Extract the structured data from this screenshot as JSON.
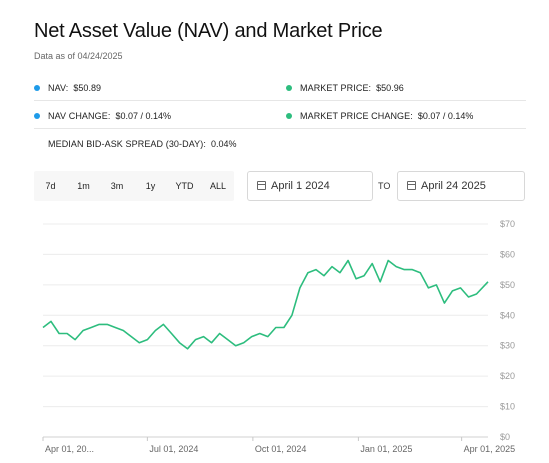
{
  "title": "Net Asset Value (NAV) and Market Price",
  "as_of": "Data as of 04/24/2025",
  "stats": {
    "nav": {
      "label": "NAV:",
      "value": "$50.89",
      "color": "#1e9be9"
    },
    "market_price": {
      "label": "MARKET PRICE:",
      "value": "$50.96",
      "color": "#2dbd7e"
    },
    "nav_change": {
      "label": "NAV CHANGE:",
      "value": "$0.07 / 0.14%",
      "color": "#1e9be9"
    },
    "market_price_change": {
      "label": "MARKET PRICE CHANGE:",
      "value": "$0.07 / 0.14%",
      "color": "#2dbd7e"
    },
    "spread": {
      "label": "MEDIAN BID-ASK SPREAD (30-DAY):",
      "value": "0.04%"
    }
  },
  "range_buttons": [
    "7d",
    "1m",
    "3m",
    "1y",
    "YTD",
    "ALL"
  ],
  "date_from": "April 1 2024",
  "date_to_label": "TO",
  "date_to": "April 24 2025",
  "chart_data": {
    "type": "line",
    "x_tick_labels": [
      "Apr 01, 20...",
      "Jul 01, 2024",
      "Oct 01, 2024",
      "Jan 01, 2025",
      "Apr 01, 2025"
    ],
    "x_ticks": [
      "2024-04-01",
      "2024-07-01",
      "2024-10-01",
      "2025-01-01",
      "2025-04-01"
    ],
    "y_tick_labels": [
      "$0",
      "$10",
      "$20",
      "$30",
      "$40",
      "$50",
      "$60",
      "$70"
    ],
    "ylim": [
      0,
      70
    ],
    "xlim": [
      "2024-04-01",
      "2025-04-24"
    ],
    "grid": true,
    "series": [
      {
        "color": "#2dbd7e",
        "x": [
          "2024-04-01",
          "2024-04-08",
          "2024-04-15",
          "2024-04-22",
          "2024-04-29",
          "2024-05-06",
          "2024-05-13",
          "2024-05-20",
          "2024-05-27",
          "2024-06-03",
          "2024-06-10",
          "2024-06-17",
          "2024-06-24",
          "2024-07-01",
          "2024-07-08",
          "2024-07-15",
          "2024-07-22",
          "2024-07-29",
          "2024-08-05",
          "2024-08-12",
          "2024-08-19",
          "2024-08-26",
          "2024-09-02",
          "2024-09-09",
          "2024-09-16",
          "2024-09-23",
          "2024-09-30",
          "2024-10-07",
          "2024-10-14",
          "2024-10-21",
          "2024-10-28",
          "2024-11-04",
          "2024-11-11",
          "2024-11-18",
          "2024-11-25",
          "2024-12-02",
          "2024-12-09",
          "2024-12-16",
          "2024-12-23",
          "2024-12-30",
          "2025-01-06",
          "2025-01-13",
          "2025-01-20",
          "2025-01-27",
          "2025-02-03",
          "2025-02-10",
          "2025-02-17",
          "2025-02-24",
          "2025-03-03",
          "2025-03-10",
          "2025-03-17",
          "2025-03-24",
          "2025-03-31",
          "2025-04-07",
          "2025-04-14",
          "2025-04-24"
        ],
        "y": [
          36,
          38,
          34,
          34,
          32,
          35,
          36,
          37,
          37,
          36,
          35,
          33,
          31,
          32,
          35,
          37,
          34,
          31,
          29,
          32,
          33,
          31,
          34,
          32,
          30,
          31,
          33,
          34,
          33,
          36,
          36,
          40,
          49,
          54,
          55,
          53,
          56,
          54,
          58,
          52,
          53,
          57,
          51,
          58,
          56,
          55,
          55,
          54,
          49,
          50,
          44,
          48,
          49,
          46,
          47,
          51
        ]
      }
    ]
  }
}
